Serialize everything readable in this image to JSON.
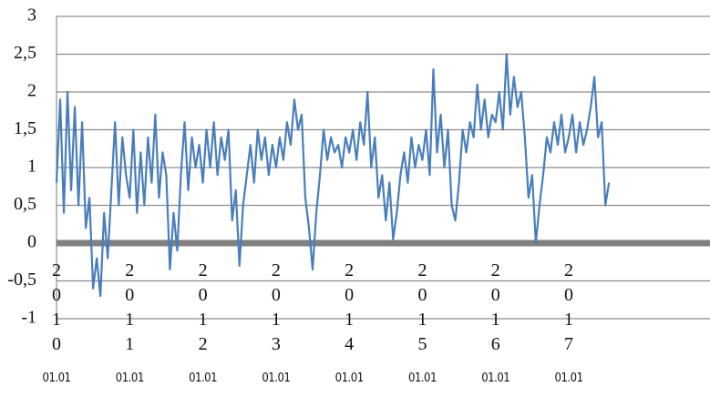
{
  "chart_data": {
    "type": "line",
    "x": [
      2010,
      2010.05,
      2010.1,
      2010.15,
      2010.2,
      2010.25,
      2010.3,
      2010.35,
      2010.4,
      2010.45,
      2010.5,
      2010.55,
      2010.6,
      2010.65,
      2010.7,
      2010.75,
      2010.8,
      2010.85,
      2010.9,
      2010.95,
      2011,
      2011.05,
      2011.1,
      2011.15,
      2011.2,
      2011.25,
      2011.3,
      2011.35,
      2011.4,
      2011.45,
      2011.5,
      2011.55,
      2011.6,
      2011.65,
      2011.7,
      2011.75,
      2011.8,
      2011.85,
      2011.9,
      2011.95,
      2012,
      2012.05,
      2012.1,
      2012.15,
      2012.2,
      2012.25,
      2012.3,
      2012.35,
      2012.4,
      2012.45,
      2012.5,
      2012.55,
      2012.6,
      2012.65,
      2012.7,
      2012.75,
      2012.8,
      2012.85,
      2012.9,
      2012.95,
      2013,
      2013.05,
      2013.1,
      2013.15,
      2013.2,
      2013.25,
      2013.3,
      2013.35,
      2013.4,
      2013.45,
      2013.5,
      2013.55,
      2013.6,
      2013.65,
      2013.7,
      2013.75,
      2013.8,
      2013.85,
      2013.9,
      2013.95,
      2014,
      2014.05,
      2014.1,
      2014.15,
      2014.2,
      2014.25,
      2014.3,
      2014.35,
      2014.4,
      2014.45,
      2014.5,
      2014.55,
      2014.6,
      2014.65,
      2014.7,
      2014.75,
      2014.8,
      2014.85,
      2014.9,
      2014.95,
      2015,
      2015.05,
      2015.1,
      2015.15,
      2015.2,
      2015.25,
      2015.3,
      2015.35,
      2015.4,
      2015.45,
      2015.5,
      2015.55,
      2015.6,
      2015.65,
      2015.7,
      2015.75,
      2015.8,
      2015.85,
      2015.9,
      2015.95,
      2016,
      2016.05,
      2016.1,
      2016.15,
      2016.2,
      2016.25,
      2016.3,
      2016.35,
      2016.4,
      2016.45,
      2016.5,
      2016.55,
      2016.6,
      2016.65,
      2016.7,
      2016.75,
      2016.8,
      2016.85,
      2016.9,
      2016.95,
      2017,
      2017.05,
      2017.1,
      2017.15,
      2017.2,
      2017.25,
      2017.3,
      2017.35,
      2017.4,
      2017.45,
      2017.5,
      2017.55
    ],
    "series": [
      {
        "color": "#4a7ebb",
        "values": [
          0.8,
          1.9,
          0.4,
          2.0,
          0.7,
          1.8,
          0.5,
          1.6,
          0.2,
          0.6,
          -0.6,
          -0.2,
          -0.7,
          0.4,
          -0.2,
          0.7,
          1.6,
          0.5,
          1.4,
          0.9,
          0.6,
          1.5,
          0.4,
          1.2,
          0.5,
          1.4,
          0.8,
          1.7,
          0.6,
          1.2,
          0.9,
          -0.35,
          0.4,
          -0.1,
          0.9,
          1.6,
          0.7,
          1.4,
          1.0,
          1.3,
          0.8,
          1.5,
          1.0,
          1.6,
          0.9,
          1.4,
          1.1,
          1.5,
          0.3,
          0.7,
          -0.3,
          0.5,
          0.9,
          1.3,
          0.8,
          1.5,
          1.1,
          1.4,
          0.9,
          1.3,
          1.0,
          1.4,
          1.1,
          1.6,
          1.3,
          1.9,
          1.5,
          1.7,
          0.6,
          0.2,
          -0.35,
          0.4,
          0.9,
          1.5,
          1.1,
          1.4,
          1.2,
          1.3,
          1.0,
          1.4,
          1.2,
          1.5,
          1.1,
          1.6,
          1.3,
          2.0,
          1.0,
          1.4,
          0.6,
          0.9,
          0.3,
          0.8,
          0.05,
          0.4,
          0.9,
          1.2,
          0.8,
          1.4,
          1.0,
          1.3,
          1.1,
          1.5,
          0.9,
          2.3,
          1.2,
          1.7,
          1.0,
          1.5,
          0.5,
          0.3,
          0.8,
          1.5,
          1.2,
          1.6,
          1.4,
          2.1,
          1.5,
          1.9,
          1.4,
          1.7,
          1.6,
          2.0,
          1.5,
          2.5,
          1.7,
          2.2,
          1.8,
          2.0,
          1.4,
          0.6,
          0.9,
          0.0,
          0.5,
          0.9,
          1.4,
          1.2,
          1.6,
          1.3,
          1.7,
          1.2,
          1.4,
          1.7,
          1.2,
          1.6,
          1.3,
          1.5,
          1.8,
          2.2,
          1.4,
          1.6,
          0.5,
          0.8
        ]
      }
    ],
    "xlim": [
      2010,
      2018.93
    ],
    "xticks": [
      2010,
      2011,
      2012,
      2013,
      2014,
      2015,
      2016,
      2017
    ],
    "xtick_sublabels": [
      "01.01",
      "01.01",
      "01.01",
      "01.01",
      "01.01",
      "01.01",
      "01.01",
      "01.01"
    ],
    "ylim": [
      -1,
      3
    ],
    "yticks": [
      {
        "value": -1,
        "label": "-1"
      },
      {
        "value": -0.5,
        "label": "-0,5"
      },
      0,
      {
        "value": 0.5,
        "label": "0,5"
      },
      1,
      {
        "value": 1.5,
        "label": "1,5"
      },
      2,
      {
        "value": 2.5,
        "label": "2,5"
      },
      3
    ],
    "grid": true,
    "zero_line_color": "#808080"
  }
}
